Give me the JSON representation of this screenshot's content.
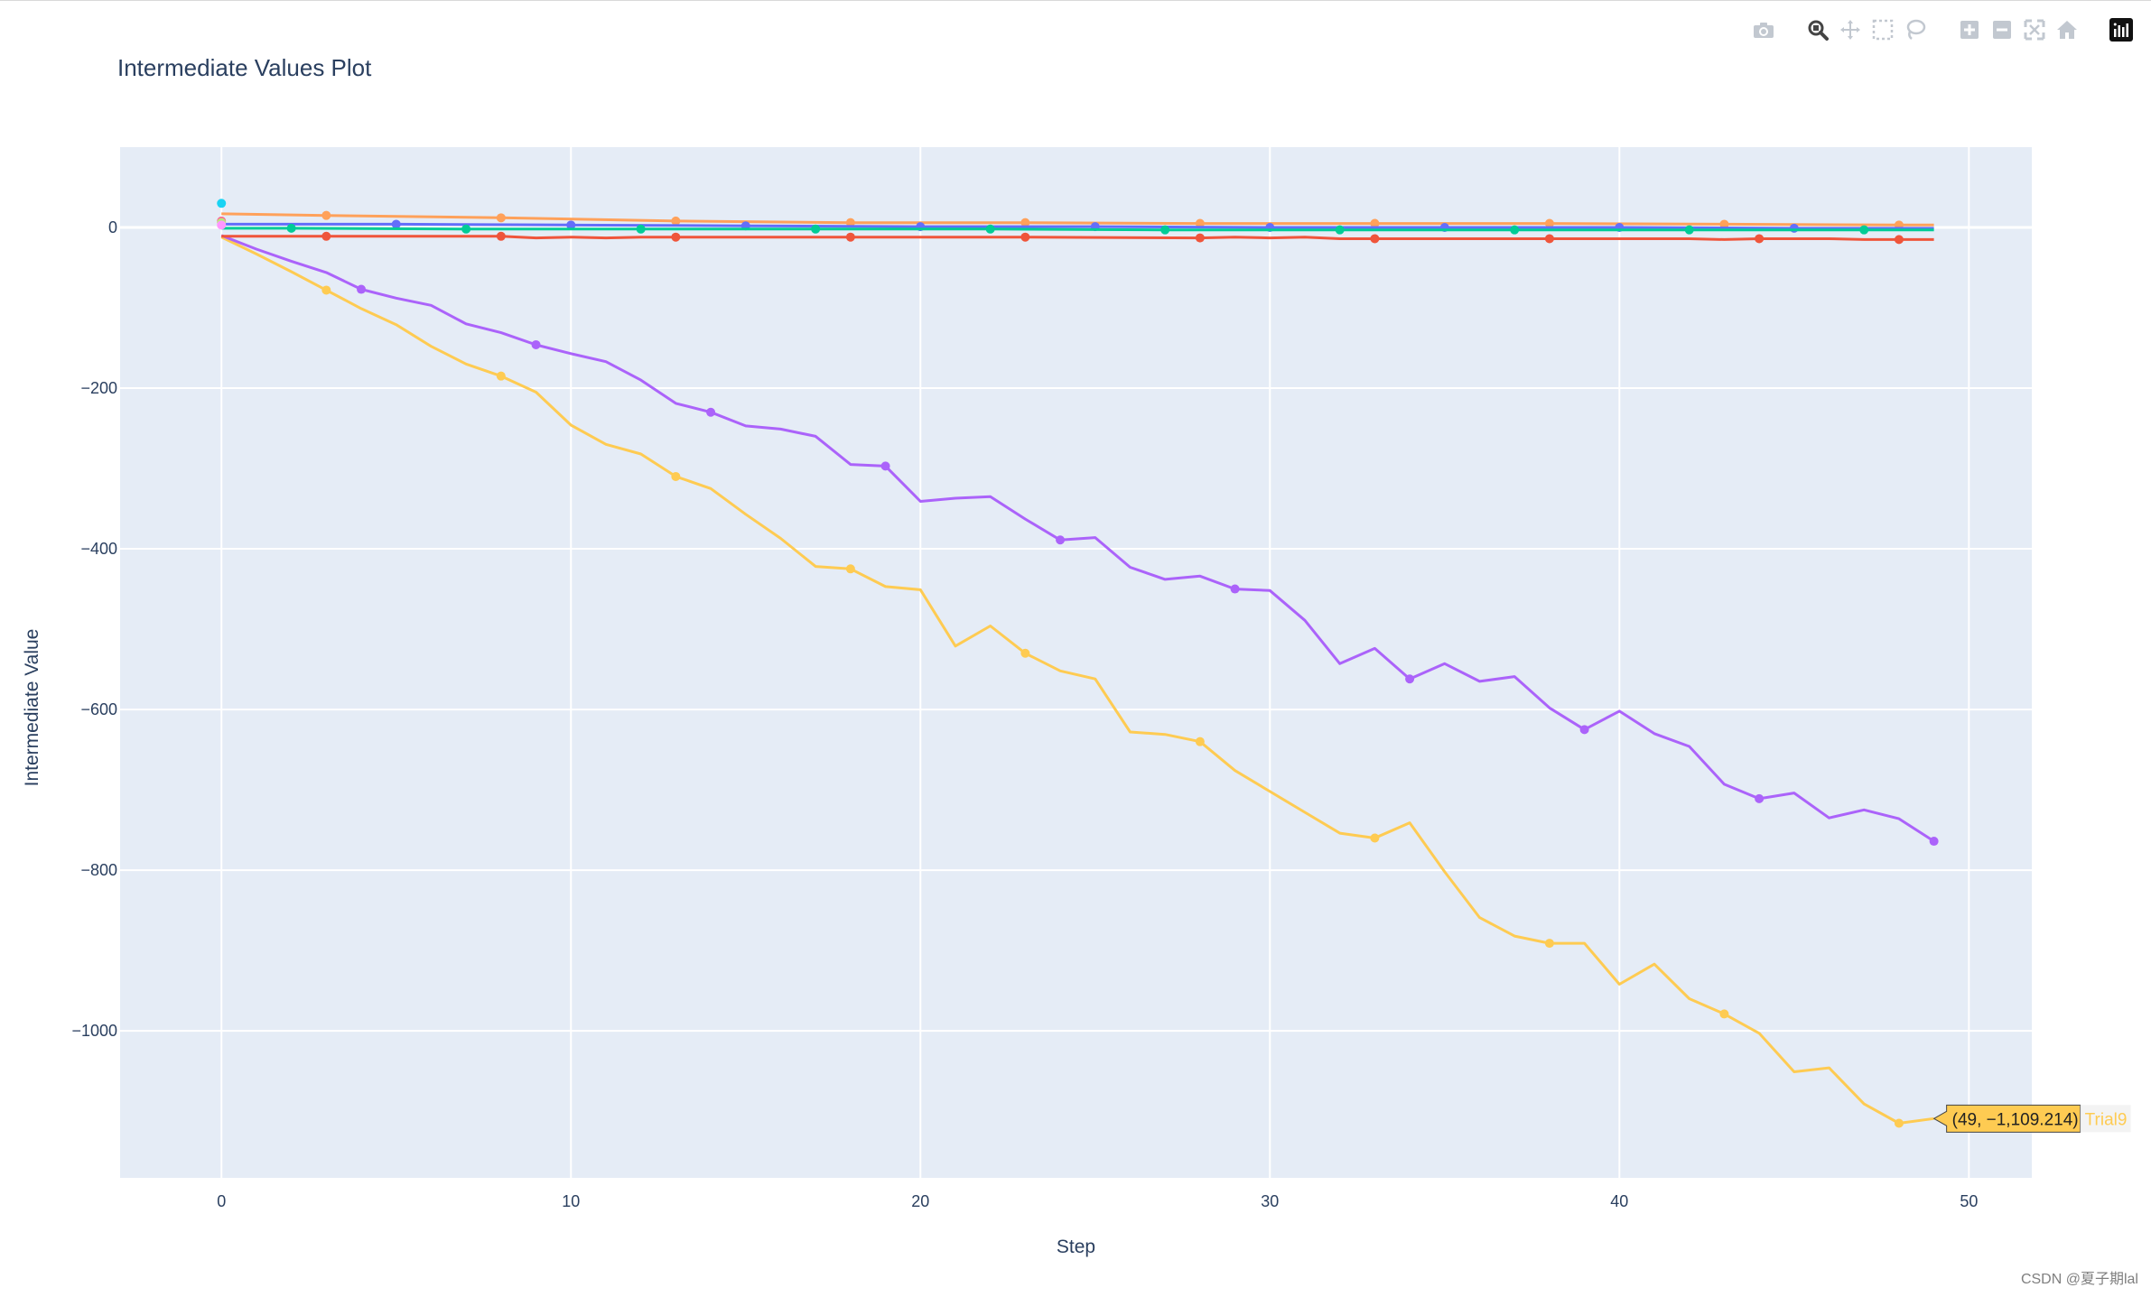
{
  "title": "Intermediate Values Plot",
  "watermark": "CSDN @夏子期lal",
  "modebar": [
    {
      "name": "camera-icon",
      "label": "Download plot as a png"
    },
    {
      "name": "zoom-icon",
      "label": "Zoom"
    },
    {
      "name": "pan-icon",
      "label": "Pan"
    },
    {
      "name": "box-select-icon",
      "label": "Box Select"
    },
    {
      "name": "lasso-select-icon",
      "label": "Lasso Select"
    },
    {
      "name": "zoom-in-icon",
      "label": "Zoom in"
    },
    {
      "name": "zoom-out-icon",
      "label": "Zoom out"
    },
    {
      "name": "autoscale-icon",
      "label": "Autoscale"
    },
    {
      "name": "reset-axes-icon",
      "label": "Reset axes"
    },
    {
      "name": "plotly-logo-icon",
      "label": "Produced with Plotly"
    }
  ],
  "tooltip": {
    "text": "(49, −1,109.214)",
    "series_label": "Trial9",
    "color": "#FECB52",
    "x": 49,
    "y": -1109.214
  },
  "colors": {
    "plot_bg": "#E5ECF6",
    "grid": "#ffffff",
    "axis_text": "#2a3f5f"
  },
  "chart_data": {
    "type": "line",
    "title": "Intermediate Values Plot",
    "xlabel": "Step",
    "ylabel": "Intermediate Value",
    "xlim": [
      -2.9,
      51.8
    ],
    "ylim": [
      -1183,
      100
    ],
    "xticks": [
      0,
      10,
      20,
      30,
      40,
      50
    ],
    "xtick_labels": [
      "0",
      "10",
      "20",
      "30",
      "40",
      "50"
    ],
    "yticks": [
      0,
      -200,
      -400,
      -600,
      -800,
      -1000
    ],
    "ytick_labels": [
      "0",
      "−200",
      "−400",
      "−600",
      "−800",
      "−1000"
    ],
    "grid": true,
    "legend": "none",
    "series": [
      {
        "name": "Trial9",
        "color": "#FECB52",
        "x": [
          0,
          1,
          2,
          3,
          4,
          5,
          6,
          7,
          8,
          9,
          10,
          11,
          12,
          13,
          14,
          15,
          16,
          17,
          18,
          19,
          20,
          21,
          22,
          23,
          24,
          25,
          26,
          27,
          28,
          29,
          30,
          31,
          32,
          33,
          34,
          35,
          36,
          37,
          38,
          39,
          40,
          41,
          42,
          43,
          44,
          45,
          46,
          47,
          48,
          49
        ],
        "y": [
          -12,
          -33,
          -55,
          -78,
          -101,
          -121,
          -148,
          -170,
          -185,
          -205,
          -246,
          -270,
          -282,
          -310,
          -325,
          -357,
          -387,
          -422,
          -425,
          -447,
          -451,
          -521,
          -496,
          -530,
          -552,
          -562,
          -628,
          -631,
          -640,
          -676,
          -702,
          -728,
          -754,
          -760,
          -741,
          -802,
          -859,
          -882,
          -891,
          -891,
          -942,
          -917,
          -960,
          -979,
          -1003,
          -1051,
          -1046,
          -1091,
          -1115,
          -1109.214
        ],
        "markers": [
          3,
          8,
          13,
          18,
          23,
          28,
          33,
          38,
          43,
          48
        ]
      },
      {
        "name": "",
        "color": "#AB63FA",
        "x": [
          0,
          1,
          2,
          3,
          4,
          5,
          6,
          7,
          8,
          9,
          10,
          11,
          12,
          13,
          14,
          15,
          16,
          17,
          18,
          19,
          20,
          21,
          22,
          23,
          24,
          25,
          26,
          27,
          28,
          29,
          30,
          31,
          32,
          33,
          34,
          35,
          36,
          37,
          38,
          39,
          40,
          41,
          42,
          43,
          44,
          45,
          46,
          47,
          48,
          49
        ],
        "y": [
          -10,
          -27,
          -42,
          -56,
          -77,
          -88,
          -97,
          -120,
          -131,
          -146,
          -157,
          -167,
          -190,
          -219,
          -230,
          -247,
          -251,
          -260,
          -295,
          -297,
          -341,
          -337,
          -335,
          -363,
          -389,
          -386,
          -423,
          -438,
          -434,
          -450,
          -452,
          -489,
          -543,
          -524,
          -562,
          -543,
          -565,
          -559,
          -598,
          -625,
          -602,
          -630,
          -646,
          -693,
          -711,
          -704,
          -735,
          -725,
          -736,
          -764
        ],
        "markers": [
          4,
          9,
          14,
          19,
          24,
          29,
          34,
          39,
          44,
          49
        ]
      },
      {
        "name": "",
        "color": "#FFA15A",
        "x": [
          0,
          3,
          8,
          13,
          18,
          23,
          28,
          33,
          38,
          43,
          48,
          49
        ],
        "y": [
          17,
          15,
          12,
          8,
          6,
          6,
          5,
          5,
          5,
          4,
          3,
          3
        ],
        "markers": [
          1,
          2,
          3,
          4,
          5,
          6,
          7,
          8,
          9,
          10
        ]
      },
      {
        "name": "",
        "color": "#636EFA",
        "x": [
          0,
          5,
          10,
          15,
          20,
          25,
          30,
          35,
          40,
          45,
          49
        ],
        "y": [
          4,
          4,
          3,
          2,
          1,
          1,
          0,
          0,
          0,
          -1,
          -1
        ],
        "markers": [
          1,
          2,
          3,
          4,
          5,
          6,
          7,
          8,
          9
        ]
      },
      {
        "name": "",
        "color": "#00CC96",
        "x": [
          0,
          2,
          7,
          12,
          17,
          22,
          27,
          32,
          37,
          42,
          47,
          49
        ],
        "y": [
          -1,
          -1,
          -2,
          -2,
          -2,
          -2,
          -3,
          -3,
          -3,
          -3,
          -3,
          -3
        ],
        "markers": [
          1,
          2,
          3,
          4,
          5,
          6,
          7,
          8,
          9,
          10
        ]
      },
      {
        "name": "",
        "color": "#EF553B",
        "x": [
          0,
          3,
          8,
          9,
          10,
          11,
          12,
          13,
          18,
          23,
          28,
          29,
          30,
          31,
          32,
          33,
          38,
          42,
          43,
          44,
          45,
          46,
          47,
          48,
          49
        ],
        "y": [
          -11,
          -11,
          -11,
          -13,
          -12,
          -13,
          -12,
          -12,
          -12,
          -12,
          -13,
          -12,
          -13,
          -12,
          -14,
          -14,
          -14,
          -14,
          -15,
          -14,
          -14,
          -14,
          -15,
          -15,
          -15
        ],
        "markers": [
          1,
          2,
          7,
          8,
          9,
          10,
          15,
          16,
          19,
          23
        ]
      },
      {
        "name": "",
        "color": "#19D3F3",
        "x": [
          0
        ],
        "y": [
          30
        ],
        "markers": [
          0
        ]
      },
      {
        "name": "",
        "color": "#FF6692",
        "x": [
          0
        ],
        "y": [
          8
        ],
        "markers": [
          0
        ]
      },
      {
        "name": "",
        "color": "#B6E880",
        "x": [
          0
        ],
        "y": [
          6
        ],
        "markers": [
          0
        ]
      },
      {
        "name": "",
        "color": "#FF97FF",
        "x": [
          0
        ],
        "y": [
          3
        ],
        "markers": [
          0
        ]
      }
    ]
  }
}
